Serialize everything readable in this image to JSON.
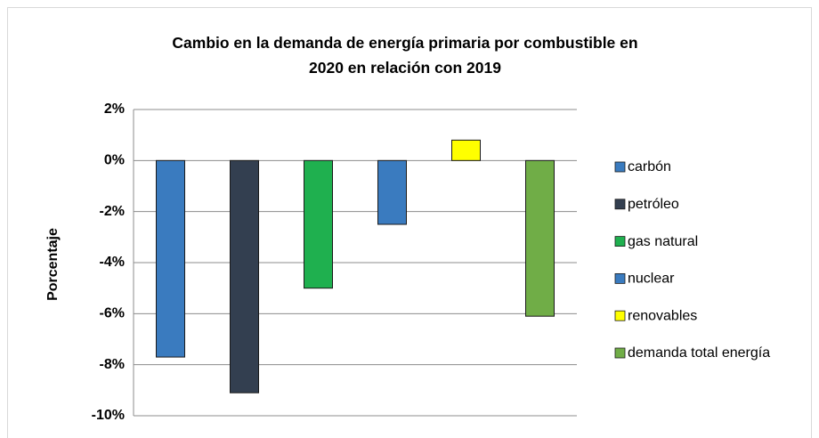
{
  "chart_data": {
    "type": "bar",
    "title": "Cambio en la demanda de energía primaria por combustible en 2020 en relación con 2019",
    "y_label": "Porcentaje",
    "series": [
      {
        "name": "carbón",
        "color": "#3a7bbf",
        "values": [
          -7.7
        ]
      },
      {
        "name": "petróleo",
        "color": "#333f50",
        "values": [
          -9.1
        ]
      },
      {
        "name": "gas natural",
        "color": "#1fb04f",
        "values": [
          -5.0
        ]
      },
      {
        "name": "nuclear",
        "color": "#3a7bbf",
        "values": [
          -2.5
        ]
      },
      {
        "name": "renovables",
        "color": "#ffff00",
        "values": [
          0.8
        ]
      },
      {
        "name": "demanda total energía",
        "color": "#70ad47",
        "values": [
          -6.1
        ]
      }
    ],
    "ylim": [
      -10,
      2
    ],
    "yticks": [
      {
        "value": 2,
        "label": "2%"
      },
      {
        "value": 0,
        "label": "0%"
      },
      {
        "value": -2,
        "label": "-2%"
      },
      {
        "value": -4,
        "label": "-4%"
      },
      {
        "value": -6,
        "label": "-6%"
      },
      {
        "value": -8,
        "label": "-8%"
      },
      {
        "value": -10,
        "label": "-10%"
      }
    ],
    "grid": true,
    "legend": "right"
  }
}
